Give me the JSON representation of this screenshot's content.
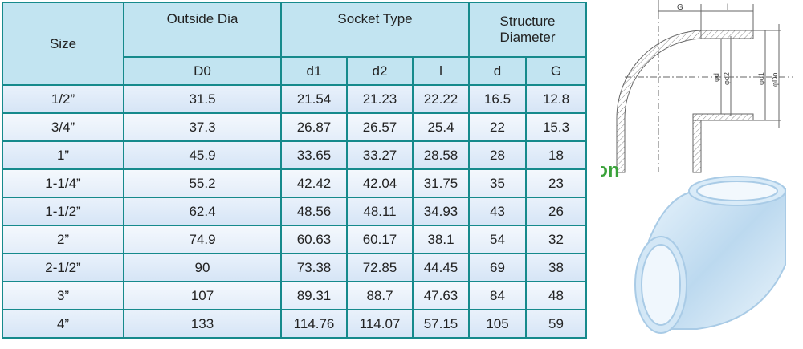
{
  "header": {
    "size": "Size",
    "outside_dia": "Outside Dia",
    "socket_type": "Socket Type",
    "structure_diameter": "Structure Diameter"
  },
  "subheader": [
    "D0",
    "d1",
    "d2",
    "l",
    "d",
    "G"
  ],
  "rows": [
    [
      "1/2”",
      "31.5",
      "21.54",
      "21.23",
      "22.22",
      "16.5",
      "12.8"
    ],
    [
      "3/4”",
      "37.3",
      "26.87",
      "26.57",
      "25.4",
      "22",
      "15.3"
    ],
    [
      "1”",
      "45.9",
      "33.65",
      "33.27",
      "28.58",
      "28",
      "18"
    ],
    [
      "1-1/4”",
      "55.2",
      "42.42",
      "42.04",
      "31.75",
      "35",
      "23"
    ],
    [
      "1-1/2”",
      "62.4",
      "48.56",
      "48.11",
      "34.93",
      "43",
      "26"
    ],
    [
      "2”",
      "74.9",
      "60.63",
      "60.17",
      "38.1",
      "54",
      "32"
    ],
    [
      "2-1/2”",
      "90",
      "73.38",
      "72.85",
      "44.45",
      "69",
      "38"
    ],
    [
      "3”",
      "107",
      "89.31",
      "88.7",
      "47.63",
      "84",
      "48"
    ],
    [
      "4”",
      "133",
      "114.76",
      "114.07",
      "57.15",
      "105",
      "59"
    ]
  ],
  "diagram": {
    "labels": [
      "G",
      "l",
      "φd",
      "φd2",
      "φd1",
      "φDo"
    ],
    "watermark": "Von"
  }
}
